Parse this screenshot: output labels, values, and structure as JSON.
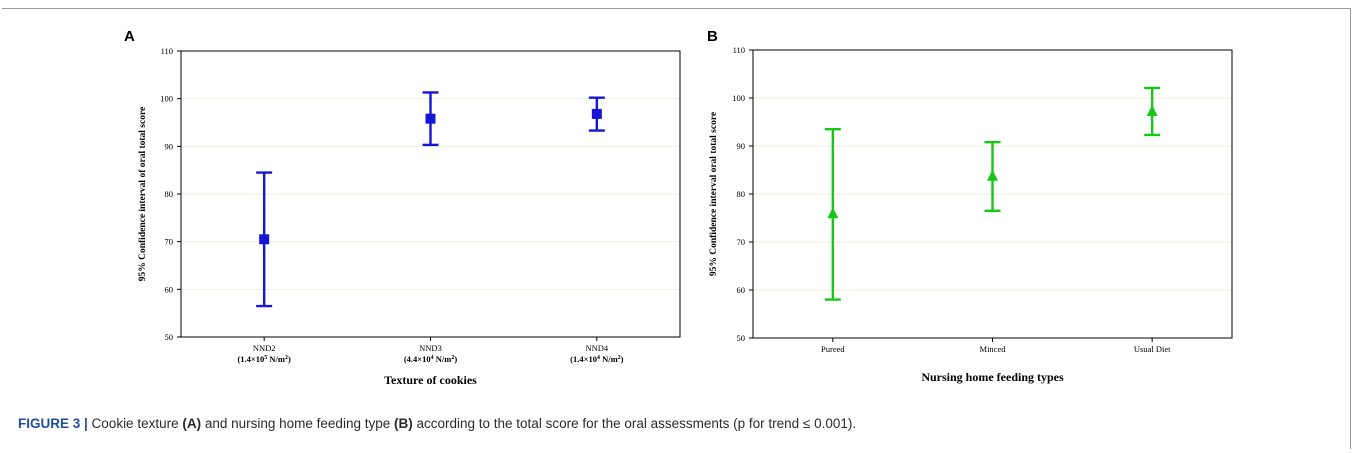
{
  "chart_data": [
    {
      "panel": "A",
      "type": "errorbar",
      "categories": [
        {
          "name": "NND2",
          "sub": "(1.4×10",
          "exp": "5",
          "unit": " N/m",
          "unit_exp": "2",
          "close": ")"
        },
        {
          "name": "NND3",
          "sub": "(4.4×10",
          "exp": "4",
          "unit": " N/m",
          "unit_exp": "2",
          "close": ")"
        },
        {
          "name": "NND4",
          "sub": "(1.4×10",
          "exp": "4",
          "unit": " N/m",
          "unit_exp": "2",
          "close": ")"
        }
      ],
      "means": [
        70.5,
        95.8,
        96.8
      ],
      "ci_low": [
        56.5,
        90.3,
        93.3
      ],
      "ci_high": [
        84.5,
        101.3,
        100.2
      ],
      "marker": "square",
      "color": "#1515d6",
      "ylabel": "95% Confidence interval of oral total score",
      "xlabel": "Texture of cookies",
      "ylim": [
        50,
        110
      ],
      "yticks": [
        50,
        60,
        70,
        80,
        90,
        100,
        110
      ],
      "grid": true
    },
    {
      "panel": "B",
      "type": "errorbar",
      "categories": [
        {
          "name": "Pureed"
        },
        {
          "name": "Minced"
        },
        {
          "name": "Usual Diet"
        }
      ],
      "means": [
        76.0,
        83.8,
        97.3
      ],
      "ci_low": [
        58.0,
        76.5,
        92.3
      ],
      "ci_high": [
        93.5,
        90.8,
        102.1
      ],
      "marker": "triangle",
      "color": "#16c716",
      "ylabel": "95% Confidence interval oral total score",
      "xlabel": "Nursing home feeding types",
      "ylim": [
        50,
        110
      ],
      "yticks": [
        50,
        60,
        70,
        80,
        90,
        100,
        110
      ],
      "grid": true
    }
  ],
  "caption": {
    "label": "FIGURE 3 |",
    "t1": " Cookie texture ",
    "a": "(A)",
    "t2": " and nursing home feeding type ",
    "b": "(B)",
    "t3": " according to the total score for the oral assessments (p for trend ≤ 0.001)."
  }
}
